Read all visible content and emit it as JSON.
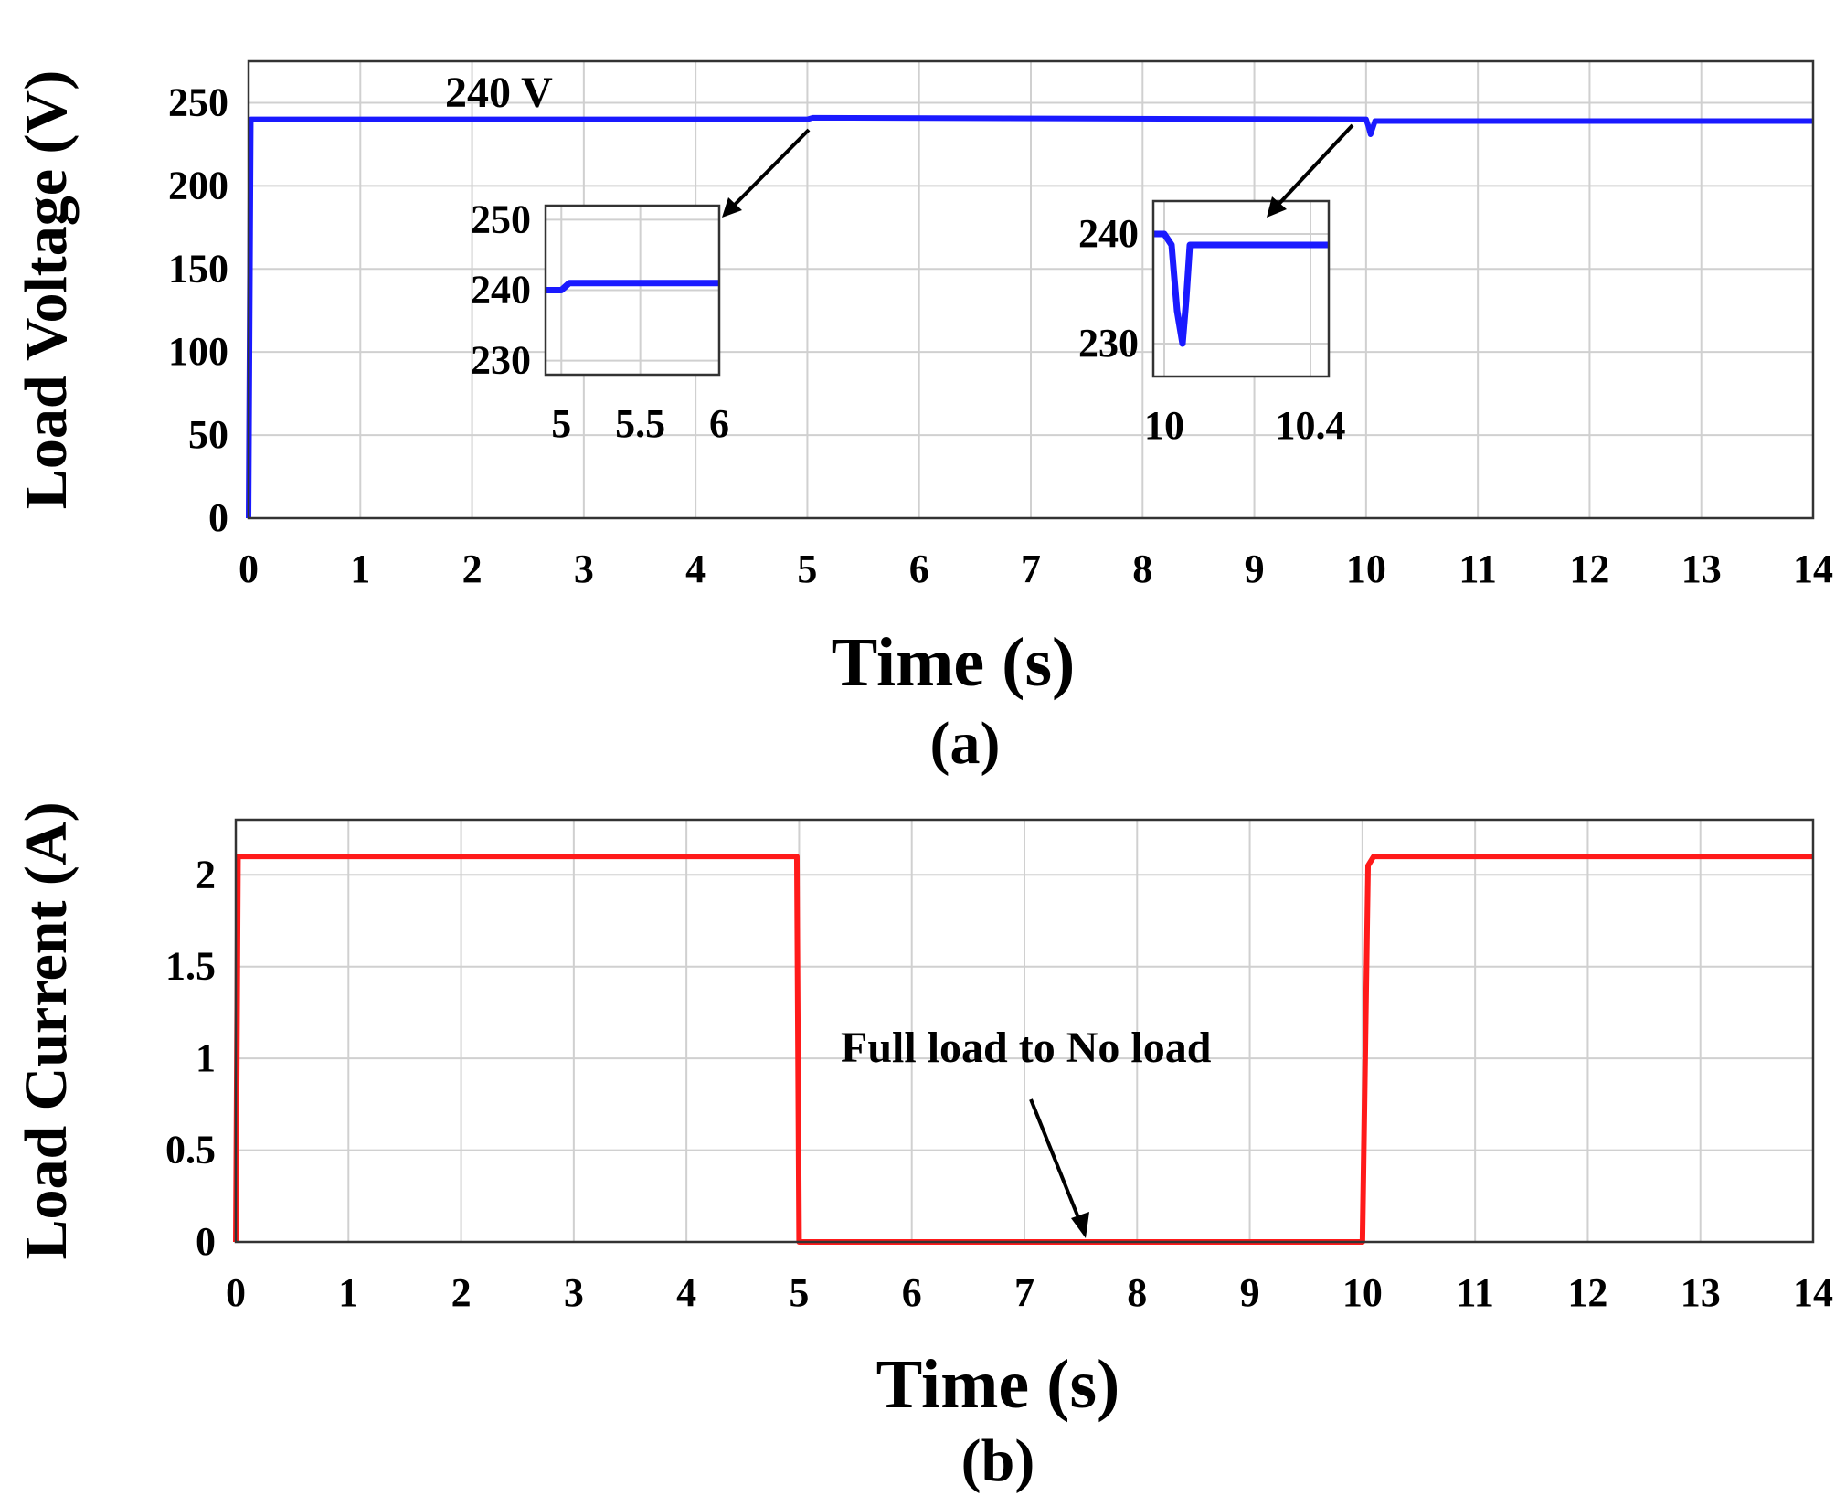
{
  "colors": {
    "voltage": "#1a1aff",
    "current": "#ff1a1a",
    "grid": "#d0d0d0",
    "axis": "#333333"
  },
  "chart_data": [
    {
      "type": "line",
      "panel_label": "(a)",
      "xlabel": "Time (s)",
      "ylabel": "Load Voltage (V)",
      "xlim": [
        0,
        14
      ],
      "ylim": [
        0,
        275
      ],
      "xticks": [
        "0",
        "1",
        "2",
        "3",
        "4",
        "5",
        "6",
        "7",
        "8",
        "9",
        "10",
        "11",
        "12",
        "13",
        "14"
      ],
      "yticks": [
        "0",
        "50",
        "100",
        "150",
        "200",
        "250"
      ],
      "grid": true,
      "series": [
        {
          "color": "#1a1aff",
          "x": [
            0,
            0.02,
            5,
            5.05,
            10,
            10.02,
            10.04,
            10.06,
            10.08,
            10.12,
            14
          ],
          "y": [
            0,
            240,
            240,
            241,
            240,
            236,
            231,
            235,
            239,
            239,
            239
          ]
        }
      ],
      "annotations": [
        {
          "text": "240 V"
        }
      ],
      "insets": [
        {
          "xlim": [
            4.9,
            6
          ],
          "ylim": [
            228,
            252
          ],
          "xticks": [
            "5",
            "5.5",
            "6"
          ],
          "yticks": [
            "230",
            "240",
            "250"
          ],
          "series_x": [
            4.9,
            5.0,
            5.05,
            5.1,
            6.0
          ],
          "series_y": [
            240,
            240,
            241,
            241,
            241
          ]
        },
        {
          "xlim": [
            9.97,
            10.45
          ],
          "ylim": [
            227,
            243
          ],
          "xticks": [
            "10",
            "10.4"
          ],
          "yticks": [
            "230",
            "240"
          ],
          "series_x": [
            9.97,
            10.0,
            10.02,
            10.035,
            10.05,
            10.06,
            10.07,
            10.1,
            10.45
          ],
          "series_y": [
            240,
            240,
            239,
            233,
            230,
            234,
            239,
            239,
            239
          ]
        }
      ]
    },
    {
      "type": "line",
      "panel_label": "(b)",
      "xlabel": "Time (s)",
      "ylabel": "Load Current (A)",
      "xlim": [
        0,
        14
      ],
      "ylim": [
        0,
        2.3
      ],
      "xticks": [
        "0",
        "1",
        "2",
        "3",
        "4",
        "5",
        "6",
        "7",
        "8",
        "9",
        "10",
        "11",
        "12",
        "13",
        "14"
      ],
      "yticks": [
        "0",
        "0.5",
        "1",
        "1.5",
        "2"
      ],
      "grid": true,
      "series": [
        {
          "color": "#ff1a1a",
          "x": [
            0,
            0.02,
            4.98,
            5.0,
            10.0,
            10.05,
            10.1,
            14
          ],
          "y": [
            0,
            2.1,
            2.1,
            0,
            0,
            2.05,
            2.1,
            2.1
          ]
        }
      ],
      "annotations": [
        {
          "text": "Full load to No load"
        }
      ]
    }
  ]
}
